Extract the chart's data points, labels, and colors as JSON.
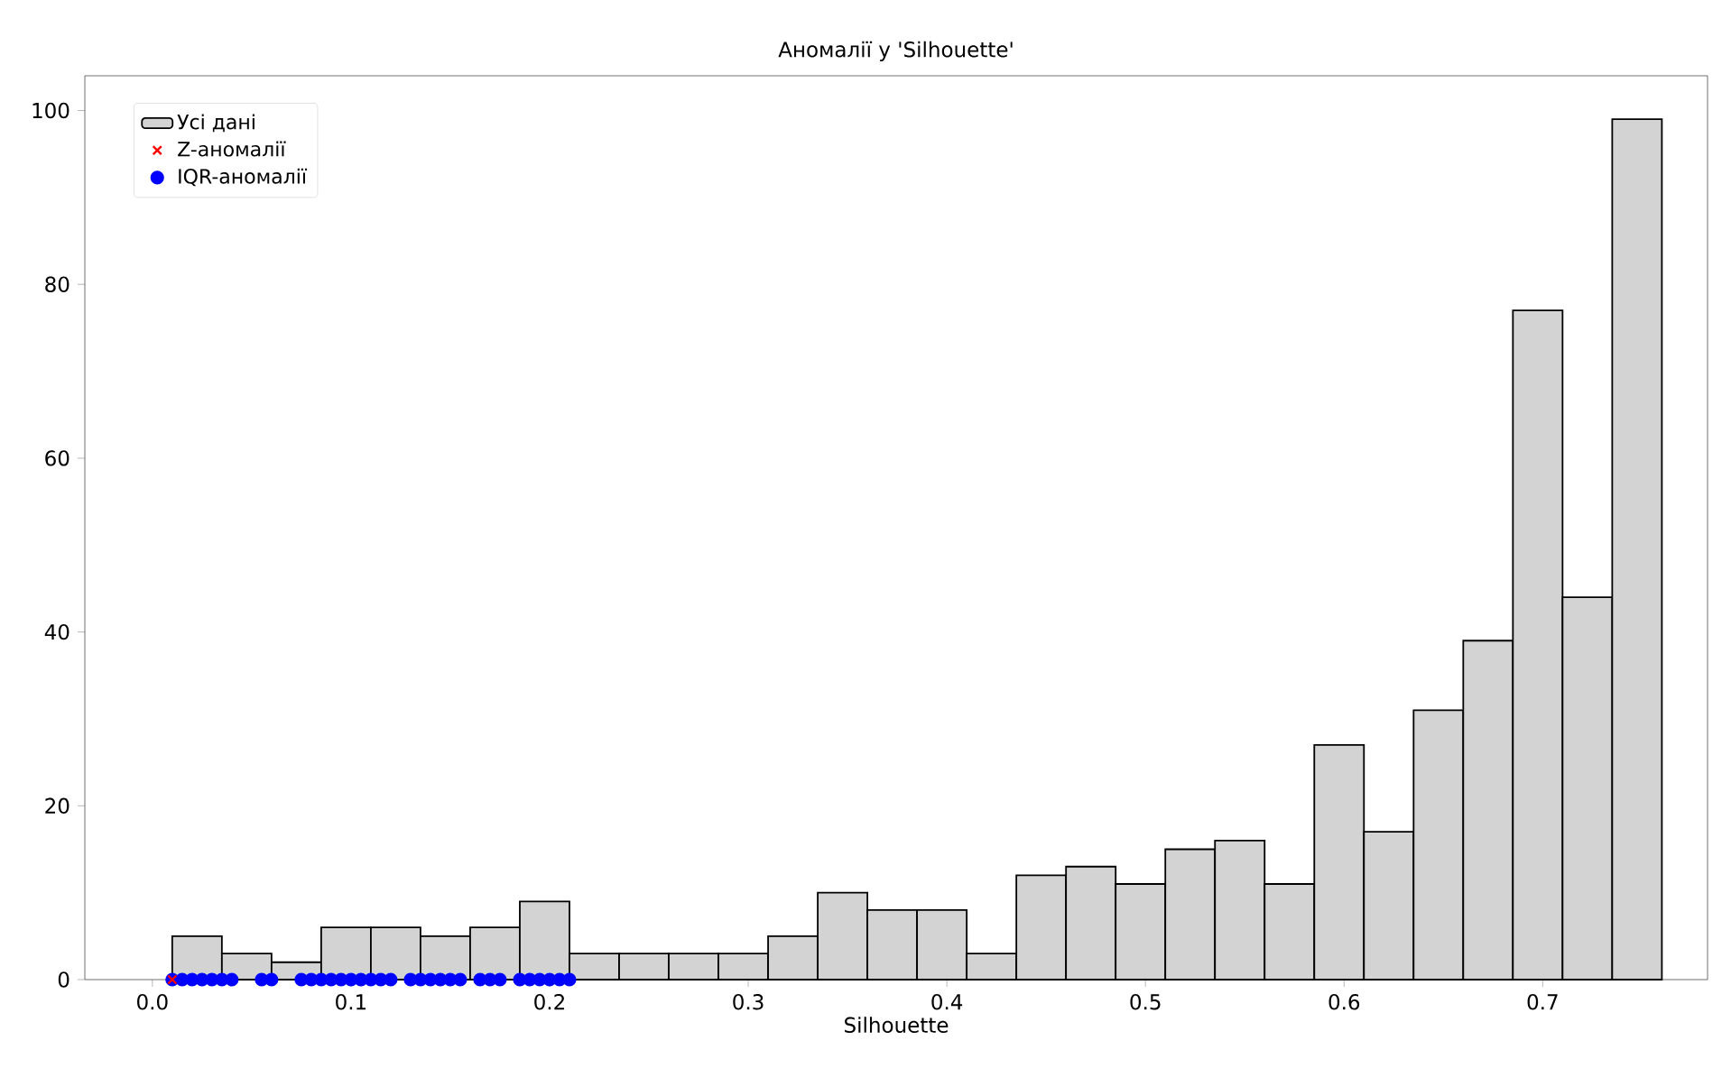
{
  "chart_data": {
    "type": "histogram",
    "title": "Аномалії у 'Silhouette'",
    "xlabel": "Silhouette",
    "bins": [
      0.01,
      0.035,
      0.06,
      0.085,
      0.11,
      0.135,
      0.16,
      0.185,
      0.21,
      0.235,
      0.26,
      0.285,
      0.31,
      0.335,
      0.36,
      0.385,
      0.41,
      0.435,
      0.46,
      0.485,
      0.51,
      0.535,
      0.56,
      0.585,
      0.61,
      0.635,
      0.66,
      0.685,
      0.71,
      0.735,
      0.76
    ],
    "series": [
      {
        "name": "Усі дані",
        "color": "#d3d3d3",
        "values": [
          5,
          3,
          2,
          6,
          6,
          5,
          6,
          9,
          3,
          3,
          3,
          3,
          5,
          10,
          8,
          8,
          3,
          12,
          13,
          11,
          15,
          16,
          11,
          27,
          17,
          31,
          39,
          77,
          44,
          99
        ]
      },
      {
        "name": "Z-аномалії",
        "type": "scatter",
        "marker": "cross",
        "color": "#ff0000",
        "x": [
          0.01
        ],
        "values": [
          0
        ]
      },
      {
        "name": "IQR-аномалії",
        "type": "scatter",
        "marker": "circle",
        "color": "#0000ff",
        "x": [
          0.01,
          0.015,
          0.02,
          0.025,
          0.03,
          0.035,
          0.04,
          0.055,
          0.06,
          0.075,
          0.08,
          0.085,
          0.09,
          0.095,
          0.1,
          0.105,
          0.11,
          0.115,
          0.12,
          0.13,
          0.135,
          0.14,
          0.145,
          0.15,
          0.155,
          0.165,
          0.17,
          0.175,
          0.185,
          0.19,
          0.195,
          0.2,
          0.205,
          0.21
        ],
        "values": [
          0,
          0,
          0,
          0,
          0,
          0,
          0,
          0,
          0,
          0,
          0,
          0,
          0,
          0,
          0,
          0,
          0,
          0,
          0,
          0,
          0,
          0,
          0,
          0,
          0,
          0,
          0,
          0,
          0,
          0,
          0,
          0,
          0,
          0
        ]
      }
    ],
    "xlim": [
      -0.034,
      0.783
    ],
    "ylim": [
      0,
      104
    ],
    "xticks": [
      {
        "value": 0,
        "label": "0.0"
      },
      0.1,
      0.2,
      0.3,
      0.4,
      0.5,
      0.6,
      0.7
    ],
    "yticks": [
      0,
      20,
      40,
      60,
      80,
      100
    ],
    "legend": "top left"
  }
}
